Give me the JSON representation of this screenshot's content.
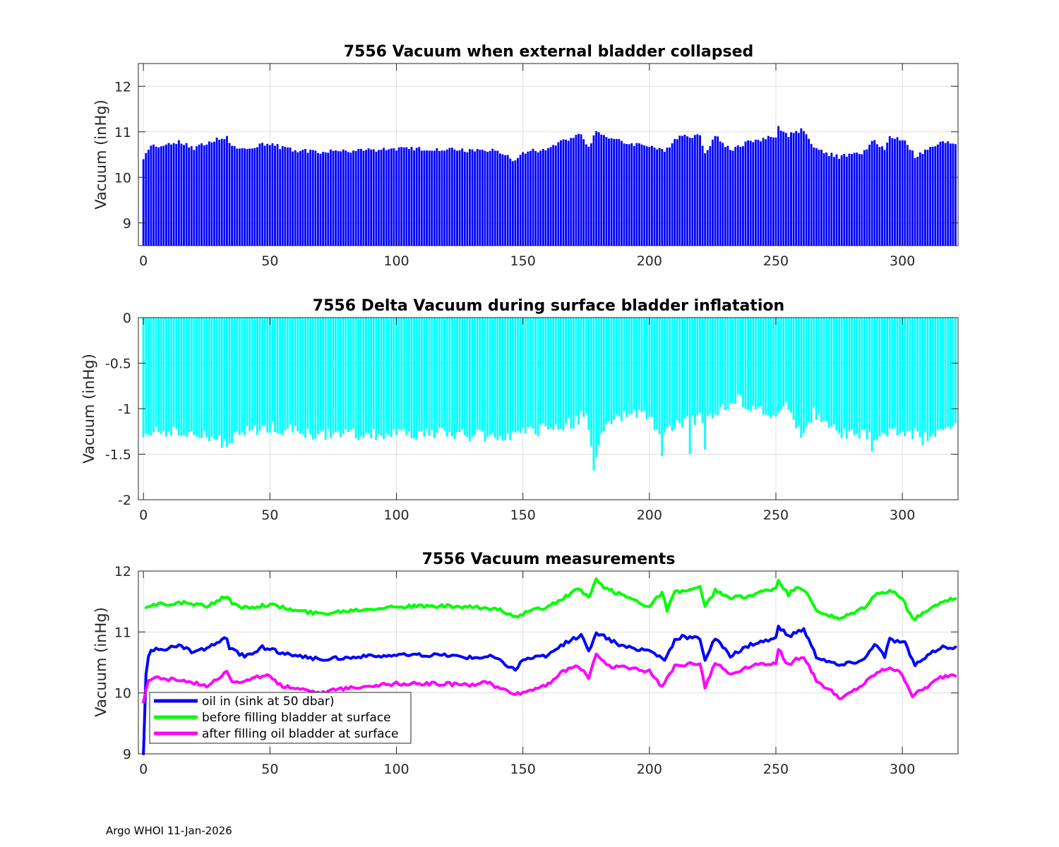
{
  "footer": "Argo WHOI 11-Jan-2026",
  "chart_data": [
    {
      "type": "bar",
      "title": "7556 Vacuum when external bladder collapsed",
      "xlabel": "",
      "ylabel": "Vacuum (inHg)",
      "xlim": [
        -2,
        322
      ],
      "ylim": [
        8.5,
        12.5
      ],
      "xticks": [
        0,
        50,
        100,
        150,
        200,
        250,
        300
      ],
      "yticks": [
        9,
        10,
        11,
        12
      ],
      "grid": true,
      "color": "#0000ff",
      "keypoints": [
        [
          0,
          10.4
        ],
        [
          2,
          10.6
        ],
        [
          3,
          10.7
        ],
        [
          10,
          10.72
        ],
        [
          14,
          10.8
        ],
        [
          20,
          10.65
        ],
        [
          33,
          10.9
        ],
        [
          34,
          10.72
        ],
        [
          40,
          10.6
        ],
        [
          47,
          10.75
        ],
        [
          60,
          10.6
        ],
        [
          70,
          10.56
        ],
        [
          90,
          10.6
        ],
        [
          100,
          10.62
        ],
        [
          120,
          10.62
        ],
        [
          130,
          10.58
        ],
        [
          138,
          10.6
        ],
        [
          142,
          10.5
        ],
        [
          147,
          10.38
        ],
        [
          150,
          10.55
        ],
        [
          160,
          10.62
        ],
        [
          166,
          10.8
        ],
        [
          173,
          10.95
        ],
        [
          176,
          10.68
        ],
        [
          179,
          11.0
        ],
        [
          183,
          10.9
        ],
        [
          190,
          10.75
        ],
        [
          200,
          10.7
        ],
        [
          206,
          10.55
        ],
        [
          210,
          10.85
        ],
        [
          213,
          10.92
        ],
        [
          220,
          10.9
        ],
        [
          222,
          10.55
        ],
        [
          226,
          10.9
        ],
        [
          232,
          10.6
        ],
        [
          240,
          10.8
        ],
        [
          250,
          10.9
        ],
        [
          251,
          11.1
        ],
        [
          255,
          10.92
        ],
        [
          258,
          11.0
        ],
        [
          261,
          11.05
        ],
        [
          266,
          10.6
        ],
        [
          275,
          10.45
        ],
        [
          285,
          10.55
        ],
        [
          289,
          10.82
        ],
        [
          293,
          10.6
        ],
        [
          295,
          10.88
        ],
        [
          301,
          10.82
        ],
        [
          305,
          10.45
        ],
        [
          310,
          10.6
        ],
        [
          315,
          10.75
        ],
        [
          320,
          10.75
        ]
      ]
    },
    {
      "type": "bar",
      "title": "7556 Delta Vacuum during surface bladder inflatation",
      "xlabel": "",
      "ylabel": "Vacuum (inHg)",
      "xlim": [
        -2,
        322
      ],
      "ylim": [
        -2,
        0
      ],
      "xticks": [
        0,
        50,
        100,
        150,
        200,
        250,
        300
      ],
      "yticks": [
        0,
        -0.5,
        -1,
        -1.5,
        -2
      ],
      "ytick_labels": [
        "0",
        "-0.5",
        "-1",
        "-1.5",
        "-2"
      ],
      "grid": true,
      "color": "#00ffff",
      "keypoints": [
        [
          0,
          -1.3
        ],
        [
          5,
          -1.22
        ],
        [
          15,
          -1.28
        ],
        [
          25,
          -1.3
        ],
        [
          33,
          -1.38
        ],
        [
          40,
          -1.25
        ],
        [
          50,
          -1.2
        ],
        [
          60,
          -1.25
        ],
        [
          70,
          -1.3
        ],
        [
          80,
          -1.28
        ],
        [
          100,
          -1.28
        ],
        [
          120,
          -1.28
        ],
        [
          140,
          -1.3
        ],
        [
          150,
          -1.28
        ],
        [
          160,
          -1.22
        ],
        [
          170,
          -1.15
        ],
        [
          175,
          -1.05
        ],
        [
          178,
          -1.68
        ],
        [
          182,
          -1.2
        ],
        [
          190,
          -1.05
        ],
        [
          200,
          -1.1
        ],
        [
          205,
          -1.3
        ],
        [
          210,
          -1.2
        ],
        [
          220,
          -1.1
        ],
        [
          230,
          -1.0
        ],
        [
          235,
          -0.9
        ],
        [
          245,
          -1.05
        ],
        [
          250,
          -1.1
        ],
        [
          255,
          -0.95
        ],
        [
          260,
          -1.3
        ],
        [
          265,
          -1.05
        ],
        [
          270,
          -1.2
        ],
        [
          280,
          -1.3
        ],
        [
          290,
          -1.3
        ],
        [
          300,
          -1.25
        ],
        [
          310,
          -1.3
        ],
        [
          320,
          -1.2
        ]
      ],
      "outliers": [
        [
          178,
          -1.68
        ],
        [
          205,
          -1.52
        ],
        [
          216,
          -1.5
        ],
        [
          222,
          -1.45
        ],
        [
          288,
          -1.47
        ],
        [
          308,
          -1.4
        ]
      ]
    },
    {
      "type": "line",
      "title": "7556 Vacuum measurements",
      "xlabel": "",
      "ylabel": "Vacuum (inHg)",
      "xlim": [
        -2,
        322
      ],
      "ylim": [
        9,
        12
      ],
      "xticks": [
        0,
        50,
        100,
        150,
        200,
        250,
        300
      ],
      "yticks": [
        9,
        10,
        11,
        12
      ],
      "grid": true,
      "legend_position": "bottom-left",
      "series": [
        {
          "name": "oil in (sink at 50 dbar)",
          "color": "#0000ff",
          "points": [
            [
              0,
              9.0
            ],
            [
              1,
              10.3
            ],
            [
              2,
              10.6
            ],
            [
              3,
              10.7
            ],
            [
              10,
              10.72
            ],
            [
              14,
              10.8
            ],
            [
              20,
              10.65
            ],
            [
              33,
              10.9
            ],
            [
              34,
              10.72
            ],
            [
              40,
              10.6
            ],
            [
              47,
              10.75
            ],
            [
              60,
              10.6
            ],
            [
              70,
              10.56
            ],
            [
              90,
              10.6
            ],
            [
              100,
              10.62
            ],
            [
              120,
              10.62
            ],
            [
              130,
              10.58
            ],
            [
              138,
              10.6
            ],
            [
              142,
              10.5
            ],
            [
              147,
              10.38
            ],
            [
              150,
              10.55
            ],
            [
              160,
              10.62
            ],
            [
              166,
              10.8
            ],
            [
              173,
              10.95
            ],
            [
              176,
              10.68
            ],
            [
              179,
              11.0
            ],
            [
              183,
              10.9
            ],
            [
              190,
              10.75
            ],
            [
              200,
              10.7
            ],
            [
              206,
              10.55
            ],
            [
              210,
              10.85
            ],
            [
              213,
              10.92
            ],
            [
              220,
              10.9
            ],
            [
              222,
              10.55
            ],
            [
              226,
              10.9
            ],
            [
              232,
              10.6
            ],
            [
              240,
              10.8
            ],
            [
              250,
              10.9
            ],
            [
              251,
              11.1
            ],
            [
              255,
              10.92
            ],
            [
              258,
              11.0
            ],
            [
              261,
              11.05
            ],
            [
              266,
              10.6
            ],
            [
              275,
              10.45
            ],
            [
              285,
              10.55
            ],
            [
              289,
              10.82
            ],
            [
              293,
              10.6
            ],
            [
              295,
              10.88
            ],
            [
              301,
              10.82
            ],
            [
              305,
              10.45
            ],
            [
              310,
              10.6
            ],
            [
              315,
              10.75
            ],
            [
              320,
              10.75
            ]
          ]
        },
        {
          "name": "before filling bladder at surface",
          "color": "#00ff00",
          "points": [
            [
              1,
              11.4
            ],
            [
              5,
              11.45
            ],
            [
              15,
              11.48
            ],
            [
              25,
              11.42
            ],
            [
              33,
              11.6
            ],
            [
              35,
              11.45
            ],
            [
              40,
              11.4
            ],
            [
              50,
              11.45
            ],
            [
              60,
              11.35
            ],
            [
              70,
              11.3
            ],
            [
              80,
              11.35
            ],
            [
              100,
              11.42
            ],
            [
              120,
              11.42
            ],
            [
              140,
              11.38
            ],
            [
              145,
              11.3
            ],
            [
              148,
              11.22
            ],
            [
              150,
              11.3
            ],
            [
              160,
              11.42
            ],
            [
              166,
              11.55
            ],
            [
              172,
              11.72
            ],
            [
              176,
              11.55
            ],
            [
              179,
              11.85
            ],
            [
              183,
              11.7
            ],
            [
              190,
              11.6
            ],
            [
              200,
              11.42
            ],
            [
              205,
              11.65
            ],
            [
              207,
              11.35
            ],
            [
              210,
              11.65
            ],
            [
              220,
              11.72
            ],
            [
              222,
              11.4
            ],
            [
              226,
              11.68
            ],
            [
              232,
              11.55
            ],
            [
              240,
              11.6
            ],
            [
              250,
              11.72
            ],
            [
              251,
              11.85
            ],
            [
              255,
              11.6
            ],
            [
              258,
              11.75
            ],
            [
              261,
              11.7
            ],
            [
              266,
              11.35
            ],
            [
              275,
              11.2
            ],
            [
              285,
              11.4
            ],
            [
              289,
              11.6
            ],
            [
              295,
              11.68
            ],
            [
              300,
              11.55
            ],
            [
              304,
              11.2
            ],
            [
              310,
              11.35
            ],
            [
              315,
              11.5
            ],
            [
              320,
              11.55
            ]
          ]
        },
        {
          "name": "after filling oil bladder at surface",
          "color": "#ff00ff",
          "points": [
            [
              0,
              9.85
            ],
            [
              1,
              10.05
            ],
            [
              2,
              10.2
            ],
            [
              5,
              10.25
            ],
            [
              15,
              10.2
            ],
            [
              25,
              10.12
            ],
            [
              33,
              10.35
            ],
            [
              35,
              10.2
            ],
            [
              40,
              10.18
            ],
            [
              48,
              10.3
            ],
            [
              55,
              10.12
            ],
            [
              65,
              10.05
            ],
            [
              70,
              10.0
            ],
            [
              80,
              10.08
            ],
            [
              90,
              10.12
            ],
            [
              100,
              10.15
            ],
            [
              120,
              10.15
            ],
            [
              130,
              10.12
            ],
            [
              135,
              10.2
            ],
            [
              140,
              10.08
            ],
            [
              148,
              9.98
            ],
            [
              150,
              10.0
            ],
            [
              160,
              10.15
            ],
            [
              166,
              10.35
            ],
            [
              172,
              10.45
            ],
            [
              176,
              10.25
            ],
            [
              179,
              10.65
            ],
            [
              183,
              10.45
            ],
            [
              190,
              10.42
            ],
            [
              200,
              10.35
            ],
            [
              205,
              10.1
            ],
            [
              210,
              10.45
            ],
            [
              220,
              10.5
            ],
            [
              222,
              10.1
            ],
            [
              226,
              10.5
            ],
            [
              232,
              10.3
            ],
            [
              240,
              10.45
            ],
            [
              250,
              10.5
            ],
            [
              251,
              10.72
            ],
            [
              255,
              10.45
            ],
            [
              258,
              10.55
            ],
            [
              261,
              10.6
            ],
            [
              266,
              10.2
            ],
            [
              276,
              9.9
            ],
            [
              285,
              10.15
            ],
            [
              289,
              10.3
            ],
            [
              295,
              10.42
            ],
            [
              300,
              10.3
            ],
            [
              304,
              9.95
            ],
            [
              310,
              10.1
            ],
            [
              315,
              10.25
            ],
            [
              320,
              10.3
            ]
          ]
        }
      ]
    }
  ]
}
